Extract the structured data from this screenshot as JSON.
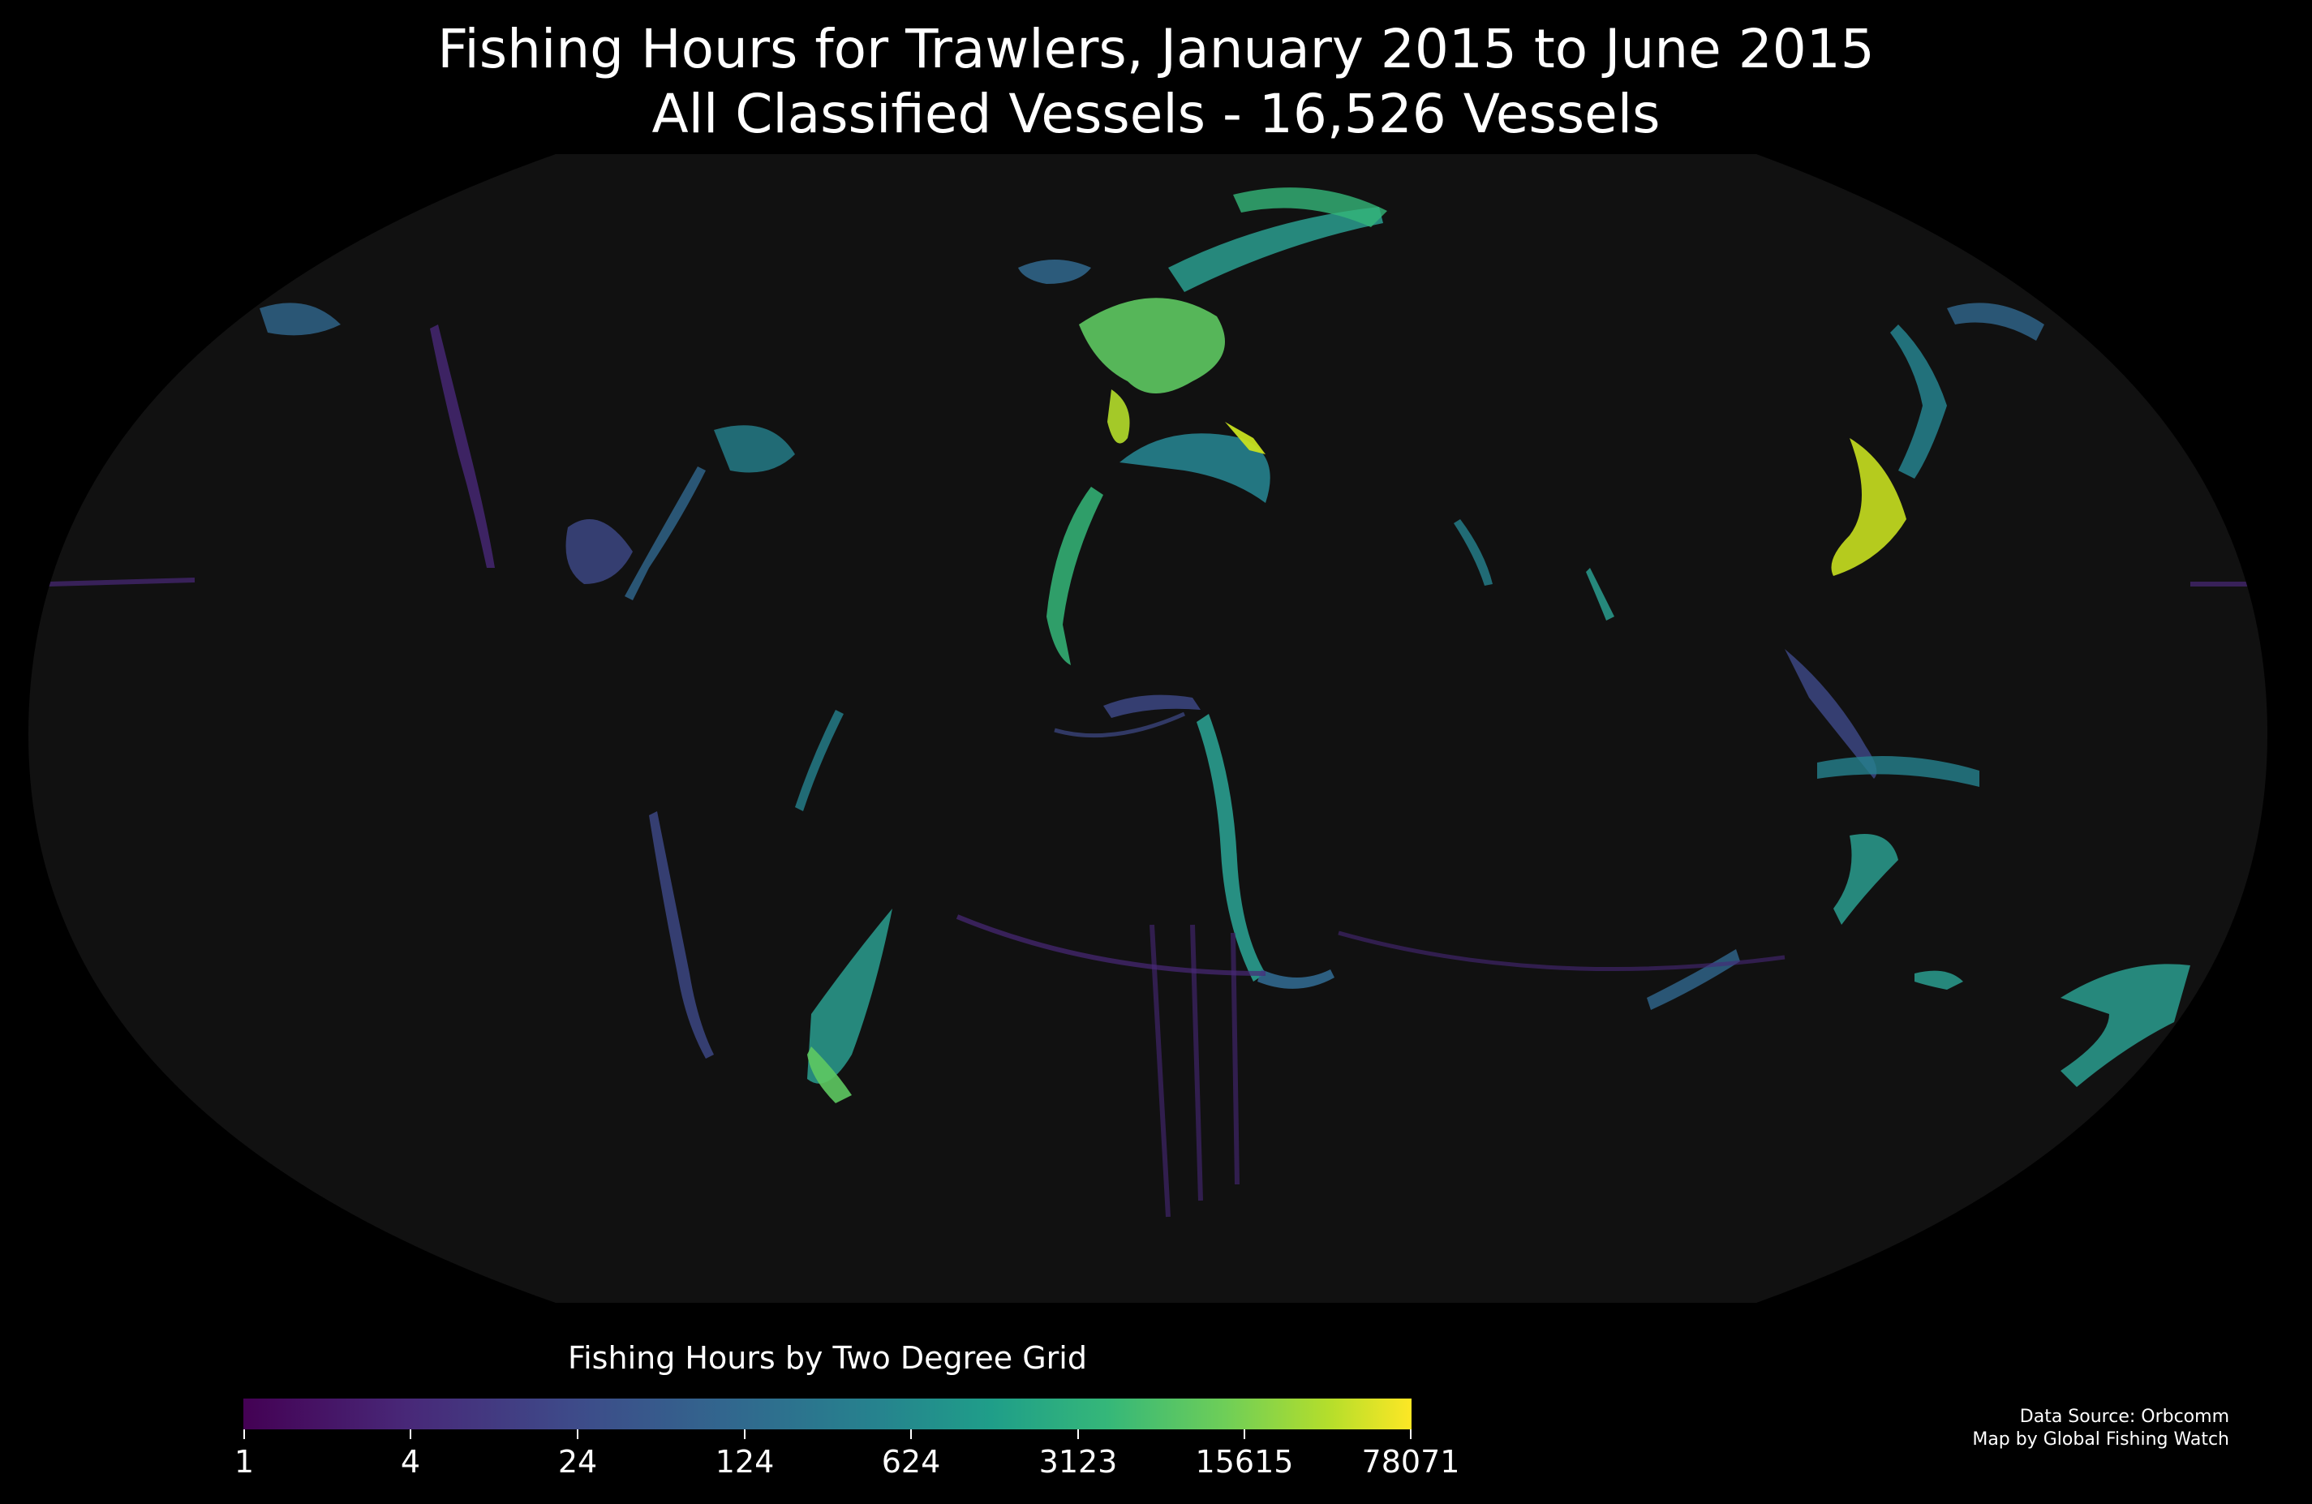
{
  "title": {
    "line1": "Fishing Hours for Trawlers, January 2015 to June 2015",
    "line2": "All Classified Vessels - 16,526 Vessels"
  },
  "colorbar": {
    "title": "Fishing Hours by Two Degree Grid",
    "ticks": [
      "1",
      "4",
      "24",
      "124",
      "624",
      "3123",
      "15615",
      "78071"
    ],
    "colormap": "viridis",
    "scale": "log"
  },
  "credits": {
    "source": "Data Source: Orbcomm",
    "author": "Map by Global Fishing Watch"
  },
  "map": {
    "projection": "Robinson",
    "ocean_color": "#111111",
    "background_color": "#000000"
  }
}
